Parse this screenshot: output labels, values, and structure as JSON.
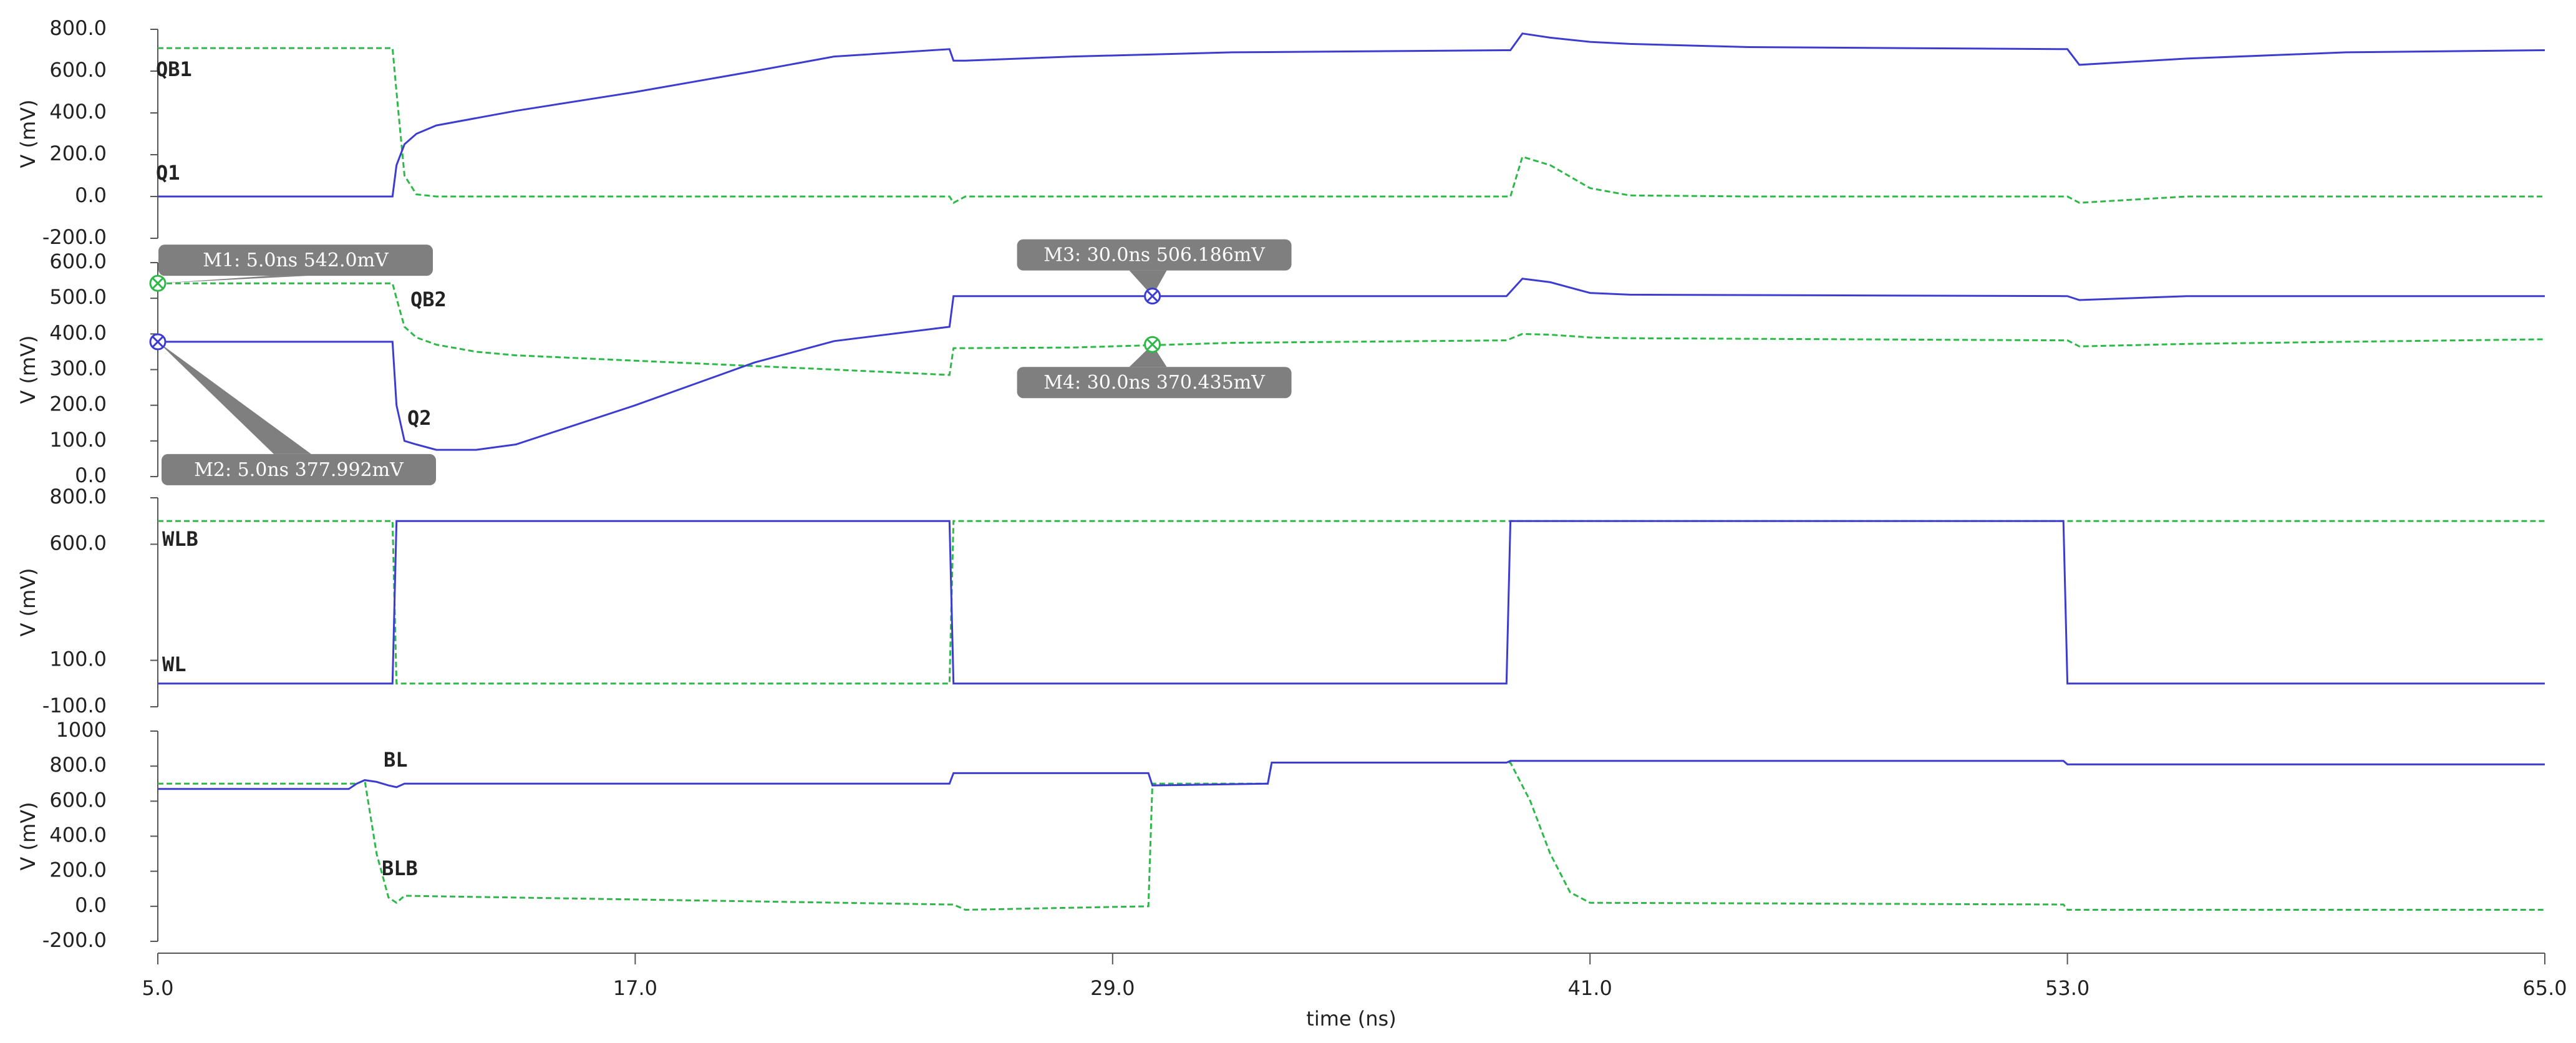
{
  "chart_data": [
    {
      "type": "line",
      "ylabel": "V (mV)",
      "xlim": [
        5,
        65
      ],
      "ylim": [
        -200,
        800
      ],
      "yticks": [
        {
          "value": 800,
          "label": "800.0"
        },
        {
          "value": 600,
          "label": "600.0"
        },
        {
          "value": 400,
          "label": "400.0"
        },
        {
          "value": 200,
          "label": "200.0"
        },
        {
          "value": 0,
          "label": "0.0"
        },
        {
          "value": -200,
          "label": "-200.0"
        }
      ],
      "x": [
        5,
        10.9,
        11.0,
        11.2,
        11.5,
        12,
        14,
        17,
        20,
        22,
        24.9,
        25.0,
        25.3,
        28,
        32,
        38.9,
        39.0,
        39.3,
        40,
        41,
        42,
        45,
        52.9,
        53.0,
        53.3,
        56,
        60,
        65
      ],
      "series": [
        {
          "name": "QB1",
          "color": "#2fb84a",
          "dashed": true,
          "values": [
            710,
            710,
            500,
            100,
            10,
            0,
            0,
            0,
            0,
            0,
            0,
            -30,
            0,
            0,
            0,
            0,
            0,
            190,
            150,
            40,
            5,
            0,
            0,
            0,
            -30,
            0,
            0,
            0
          ]
        },
        {
          "name": "Q1",
          "color": "#3c3cd0",
          "dashed": false,
          "values": [
            0,
            0,
            150,
            250,
            300,
            340,
            410,
            500,
            600,
            670,
            705,
            650,
            650,
            670,
            690,
            700,
            700,
            780,
            760,
            740,
            730,
            715,
            705,
            705,
            630,
            660,
            690,
            700
          ]
        }
      ]
    },
    {
      "type": "line",
      "ylabel": "V (mV)",
      "xlim": [
        5,
        65
      ],
      "ylim": [
        0,
        600
      ],
      "yticks": [
        {
          "value": 600,
          "label": "600.0"
        },
        {
          "value": 500,
          "label": "500.0"
        },
        {
          "value": 400,
          "label": "400.0"
        },
        {
          "value": 300,
          "label": "300.0"
        },
        {
          "value": 200,
          "label": "200.0"
        },
        {
          "value": 100,
          "label": "100.0"
        },
        {
          "value": 0,
          "label": "0.0"
        }
      ],
      "x": [
        5,
        10.9,
        11.0,
        11.2,
        11.5,
        12,
        13,
        14,
        17,
        20,
        22,
        24.9,
        25.0,
        28,
        32,
        38.9,
        39.3,
        40,
        41,
        42,
        52.9,
        53.0,
        53.3,
        56,
        60,
        65
      ],
      "series": [
        {
          "name": "QB2",
          "color": "#2fb84a",
          "dashed": true,
          "values": [
            542,
            542,
            500,
            420,
            390,
            370,
            350,
            340,
            325,
            310,
            300,
            285,
            360,
            362,
            375,
            382,
            400,
            398,
            390,
            388,
            382,
            382,
            365,
            372,
            378,
            385
          ]
        },
        {
          "name": "Q2",
          "color": "#3c3cd0",
          "dashed": false,
          "values": [
            378,
            378,
            200,
            100,
            90,
            75,
            75,
            90,
            200,
            320,
            380,
            420,
            506,
            506,
            506,
            506,
            555,
            545,
            515,
            510,
            506,
            506,
            495,
            506,
            506,
            506
          ]
        }
      ],
      "markers": [
        {
          "label": "M1: 5.0ns 542.0mV",
          "x": 5.0,
          "y": 542.0,
          "color": "#2fb84a"
        },
        {
          "label": "M2: 5.0ns 377.992mV",
          "x": 5.0,
          "y": 377.992,
          "color": "#3c3cd0"
        },
        {
          "label": "M3: 30.0ns 506.186mV",
          "x": 30.0,
          "y": 506.186,
          "color": "#3c3cd0"
        },
        {
          "label": "M4: 30.0ns 370.435mV",
          "x": 30.0,
          "y": 370.435,
          "color": "#2fb84a"
        }
      ]
    },
    {
      "type": "line",
      "ylabel": "V (mV)",
      "xlim": [
        5,
        65
      ],
      "ylim": [
        -100,
        800
      ],
      "yticks": [
        {
          "value": 800,
          "label": "800.0"
        },
        {
          "value": 600,
          "label": "600.0"
        },
        {
          "value": 100,
          "label": "100.0"
        },
        {
          "value": -100,
          "label": "-100.0"
        }
      ],
      "x": [
        5,
        10.9,
        11.0,
        24.9,
        25.0,
        38.9,
        39.0,
        52.9,
        53.0,
        65
      ],
      "series": [
        {
          "name": "WLB",
          "color": "#2fb84a",
          "dashed": true,
          "values": [
            700,
            700,
            0,
            0,
            700,
            700,
            700,
            700,
            700,
            700
          ]
        },
        {
          "name": "WL",
          "color": "#3c3cd0",
          "dashed": false,
          "values": [
            0,
            0,
            700,
            700,
            0,
            0,
            700,
            700,
            0,
            0
          ]
        }
      ]
    },
    {
      "type": "line",
      "ylabel": "V (mV)",
      "xlabel": "time (ns)",
      "xlim": [
        5,
        65
      ],
      "ylim": [
        -200,
        1000
      ],
      "xticks": [
        {
          "value": 5,
          "label": "5.0"
        },
        {
          "value": 17,
          "label": "17.0"
        },
        {
          "value": 29,
          "label": "29.0"
        },
        {
          "value": 41,
          "label": "41.0"
        },
        {
          "value": 53,
          "label": "53.0"
        },
        {
          "value": 65,
          "label": "65.0"
        }
      ],
      "yticks": [
        1000,
        {
          "value": 800,
          "label": "800.0"
        },
        {
          "value": 600,
          "label": "600.0"
        },
        {
          "value": 400,
          "label": "400.0"
        },
        {
          "value": 200,
          "label": "200.0"
        },
        {
          "value": 0,
          "label": "0.0"
        },
        {
          "value": -200,
          "label": "-200.0"
        }
      ],
      "x": [
        5,
        9.8,
        10.0,
        10.2,
        10.5,
        10.8,
        11.0,
        11.2,
        24.9,
        25.0,
        25.3,
        29.9,
        30.0,
        32.9,
        33.0,
        38.9,
        39.0,
        39.5,
        40,
        40.5,
        41,
        52.9,
        53.0,
        65
      ],
      "series": [
        {
          "name": "BLB",
          "color": "#2fb84a",
          "dashed": true,
          "values": [
            700,
            700,
            700,
            720,
            300,
            50,
            20,
            60,
            10,
            10,
            -20,
            0,
            700,
            700,
            820,
            820,
            820,
            600,
            300,
            80,
            20,
            10,
            -20,
            -20
          ]
        },
        {
          "name": "BL",
          "color": "#3c3cd0",
          "dashed": false,
          "values": [
            670,
            670,
            700,
            720,
            710,
            690,
            680,
            700,
            700,
            760,
            760,
            760,
            690,
            700,
            820,
            820,
            830,
            830,
            830,
            830,
            830,
            830,
            810,
            810
          ]
        }
      ]
    }
  ]
}
